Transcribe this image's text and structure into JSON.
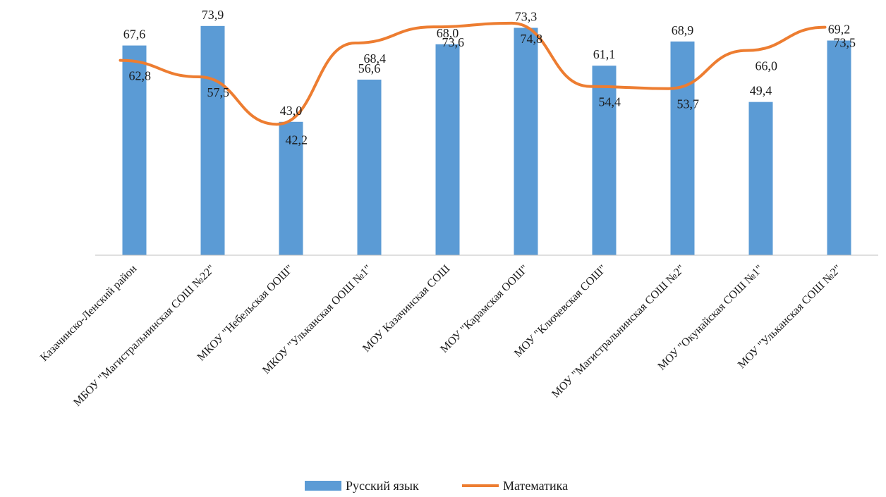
{
  "chart_data": {
    "type": "bar",
    "title": "",
    "xlabel": "",
    "ylabel": "",
    "ylim": [
      0,
      80
    ],
    "grid": false,
    "legend_position": "bottom",
    "categories": [
      "Казачинско-Ленский район",
      "МБОУ \"Магистральнинская СОШ №22\"",
      "МКОУ \"Небельская ООШ\"",
      "МКОУ \"Ульканская ООШ №1\"",
      "МОУ Казачинская СОШ",
      "МОУ \"Карамская ООШ\"",
      "МОУ \"Ключевская СОШ\"",
      "МОУ \"Магистральнинская СОШ №2\"",
      "МОУ \"Окунайская СОШ №1\"",
      "МОУ \"Ульканская СОШ №2\""
    ],
    "series": [
      {
        "name": "Русский язык",
        "kind": "bar",
        "color": "#5b9bd5",
        "values": [
          67.6,
          73.9,
          43.0,
          56.6,
          68.0,
          73.3,
          61.1,
          68.9,
          49.4,
          69.2
        ],
        "labels": [
          "67,6",
          "73,9",
          "43,0",
          "56,6",
          "68,0",
          "73,3",
          "61,1",
          "68,9",
          "49,4",
          "69,2"
        ]
      },
      {
        "name": "Математика",
        "kind": "line",
        "color": "#ed7d31",
        "values": [
          62.8,
          57.5,
          42.2,
          68.4,
          73.6,
          74.8,
          54.4,
          53.7,
          66.0,
          73.5
        ],
        "labels": [
          "62,8",
          "57,5",
          "42,2",
          "68,4",
          "73,6",
          "74,8",
          "54,4",
          "53,7",
          "66,0",
          "73,5"
        ]
      }
    ]
  }
}
